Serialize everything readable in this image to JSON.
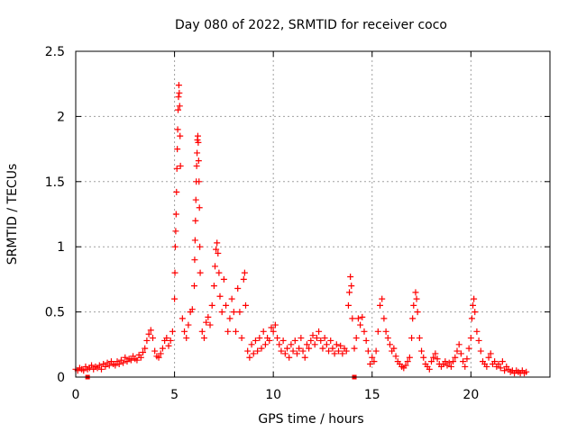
{
  "chart_data": {
    "type": "scatter",
    "title": "Day 080 of 2022, SRMTID for receiver coco",
    "xlabel": "GPS time / hours",
    "ylabel": "SRMTID / TECUs",
    "xlim": [
      0,
      24
    ],
    "ylim": [
      0,
      2.5
    ],
    "xticks": [
      0,
      5,
      10,
      15,
      20
    ],
    "xtick_labels": [
      "0",
      "5",
      "10",
      "15",
      "20"
    ],
    "yticks": [
      0,
      0.5,
      1,
      1.5,
      2,
      2.5
    ],
    "ytick_labels": [
      "0",
      "0.5",
      "1",
      "1.5",
      "2",
      "2.5"
    ],
    "grid": true,
    "marker": "+",
    "marker_color": "#ff0000",
    "series": [
      {
        "name": "SRMTID",
        "color": "#ff0000",
        "points": [
          [
            0.0,
            0.06
          ],
          [
            0.1,
            0.05
          ],
          [
            0.2,
            0.07
          ],
          [
            0.3,
            0.06
          ],
          [
            0.4,
            0.05
          ],
          [
            0.5,
            0.08
          ],
          [
            0.6,
            0.06
          ],
          [
            0.7,
            0.07
          ],
          [
            0.8,
            0.09
          ],
          [
            0.9,
            0.06
          ],
          [
            1.0,
            0.08
          ],
          [
            1.1,
            0.07
          ],
          [
            1.2,
            0.09
          ],
          [
            1.3,
            0.06
          ],
          [
            1.4,
            0.1
          ],
          [
            1.5,
            0.08
          ],
          [
            1.6,
            0.11
          ],
          [
            1.7,
            0.09
          ],
          [
            1.8,
            0.12
          ],
          [
            1.9,
            0.1
          ],
          [
            2.0,
            0.09
          ],
          [
            2.1,
            0.12
          ],
          [
            2.2,
            0.1
          ],
          [
            2.3,
            0.13
          ],
          [
            2.4,
            0.11
          ],
          [
            2.5,
            0.15
          ],
          [
            2.6,
            0.12
          ],
          [
            2.7,
            0.14
          ],
          [
            2.8,
            0.13
          ],
          [
            2.9,
            0.16
          ],
          [
            3.0,
            0.14
          ],
          [
            3.1,
            0.13
          ],
          [
            3.2,
            0.17
          ],
          [
            3.3,
            0.15
          ],
          [
            3.4,
            0.19
          ],
          [
            3.5,
            0.22
          ],
          [
            3.6,
            0.28
          ],
          [
            3.7,
            0.33
          ],
          [
            3.8,
            0.36
          ],
          [
            3.9,
            0.3
          ],
          [
            4.0,
            0.2
          ],
          [
            4.1,
            0.16
          ],
          [
            4.2,
            0.15
          ],
          [
            4.3,
            0.18
          ],
          [
            4.4,
            0.22
          ],
          [
            4.5,
            0.28
          ],
          [
            4.6,
            0.3
          ],
          [
            4.7,
            0.24
          ],
          [
            4.8,
            0.28
          ],
          [
            4.9,
            0.35
          ],
          [
            5.0,
            0.6
          ],
          [
            5.02,
            0.8
          ],
          [
            5.04,
            1.0
          ],
          [
            5.06,
            1.12
          ],
          [
            5.08,
            1.25
          ],
          [
            5.1,
            1.42
          ],
          [
            5.12,
            1.6
          ],
          [
            5.14,
            1.75
          ],
          [
            5.16,
            1.9
          ],
          [
            5.18,
            2.05
          ],
          [
            5.2,
            2.15
          ],
          [
            5.22,
            2.24
          ],
          [
            5.24,
            2.18
          ],
          [
            5.26,
            2.08
          ],
          [
            5.28,
            1.85
          ],
          [
            5.3,
            1.62
          ],
          [
            5.4,
            0.45
          ],
          [
            5.5,
            0.35
          ],
          [
            5.6,
            0.3
          ],
          [
            5.7,
            0.4
          ],
          [
            5.8,
            0.5
          ],
          [
            5.9,
            0.52
          ],
          [
            6.0,
            0.7
          ],
          [
            6.02,
            0.9
          ],
          [
            6.04,
            1.05
          ],
          [
            6.06,
            1.2
          ],
          [
            6.08,
            1.36
          ],
          [
            6.1,
            1.5
          ],
          [
            6.12,
            1.62
          ],
          [
            6.14,
            1.72
          ],
          [
            6.16,
            1.82
          ],
          [
            6.18,
            1.85
          ],
          [
            6.2,
            1.8
          ],
          [
            6.22,
            1.66
          ],
          [
            6.24,
            1.5
          ],
          [
            6.26,
            1.3
          ],
          [
            6.28,
            1.0
          ],
          [
            6.3,
            0.8
          ],
          [
            6.4,
            0.35
          ],
          [
            6.5,
            0.3
          ],
          [
            6.6,
            0.42
          ],
          [
            6.7,
            0.46
          ],
          [
            6.8,
            0.4
          ],
          [
            6.9,
            0.55
          ],
          [
            7.0,
            0.7
          ],
          [
            7.05,
            0.85
          ],
          [
            7.1,
            0.98
          ],
          [
            7.15,
            1.03
          ],
          [
            7.2,
            0.95
          ],
          [
            7.25,
            0.8
          ],
          [
            7.3,
            0.62
          ],
          [
            7.4,
            0.5
          ],
          [
            7.5,
            0.75
          ],
          [
            7.6,
            0.55
          ],
          [
            7.7,
            0.35
          ],
          [
            7.8,
            0.45
          ],
          [
            7.9,
            0.6
          ],
          [
            8.0,
            0.5
          ],
          [
            8.1,
            0.35
          ],
          [
            8.2,
            0.68
          ],
          [
            8.3,
            0.5
          ],
          [
            8.4,
            0.3
          ],
          [
            8.5,
            0.75
          ],
          [
            8.55,
            0.8
          ],
          [
            8.6,
            0.55
          ],
          [
            8.7,
            0.2
          ],
          [
            8.8,
            0.15
          ],
          [
            8.9,
            0.25
          ],
          [
            9.0,
            0.18
          ],
          [
            9.1,
            0.28
          ],
          [
            9.2,
            0.2
          ],
          [
            9.3,
            0.3
          ],
          [
            9.4,
            0.22
          ],
          [
            9.5,
            0.35
          ],
          [
            9.6,
            0.25
          ],
          [
            9.7,
            0.3
          ],
          [
            9.8,
            0.28
          ],
          [
            9.9,
            0.38
          ],
          [
            10.0,
            0.35
          ],
          [
            10.1,
            0.4
          ],
          [
            10.2,
            0.3
          ],
          [
            10.3,
            0.25
          ],
          [
            10.4,
            0.2
          ],
          [
            10.5,
            0.28
          ],
          [
            10.6,
            0.18
          ],
          [
            10.7,
            0.22
          ],
          [
            10.8,
            0.15
          ],
          [
            10.9,
            0.25
          ],
          [
            11.0,
            0.2
          ],
          [
            11.1,
            0.28
          ],
          [
            11.2,
            0.18
          ],
          [
            11.3,
            0.22
          ],
          [
            11.4,
            0.3
          ],
          [
            11.5,
            0.2
          ],
          [
            11.6,
            0.15
          ],
          [
            11.7,
            0.25
          ],
          [
            11.8,
            0.22
          ],
          [
            11.9,
            0.28
          ],
          [
            12.0,
            0.32
          ],
          [
            12.1,
            0.25
          ],
          [
            12.2,
            0.3
          ],
          [
            12.3,
            0.35
          ],
          [
            12.4,
            0.28
          ],
          [
            12.5,
            0.22
          ],
          [
            12.6,
            0.3
          ],
          [
            12.7,
            0.25
          ],
          [
            12.8,
            0.2
          ],
          [
            12.9,
            0.28
          ],
          [
            13.0,
            0.22
          ],
          [
            13.1,
            0.18
          ],
          [
            13.2,
            0.25
          ],
          [
            13.3,
            0.2
          ],
          [
            13.4,
            0.24
          ],
          [
            13.5,
            0.18
          ],
          [
            13.6,
            0.22
          ],
          [
            13.7,
            0.2
          ],
          [
            13.8,
            0.55
          ],
          [
            13.85,
            0.65
          ],
          [
            13.9,
            0.77
          ],
          [
            13.95,
            0.7
          ],
          [
            14.0,
            0.45
          ],
          [
            14.1,
            0.22
          ],
          [
            14.2,
            0.3
          ],
          [
            14.3,
            0.45
          ],
          [
            14.4,
            0.4
          ],
          [
            14.5,
            0.46
          ],
          [
            14.6,
            0.35
          ],
          [
            14.7,
            0.28
          ],
          [
            14.8,
            0.2
          ],
          [
            14.9,
            0.1
          ],
          [
            15.0,
            0.15
          ],
          [
            15.1,
            0.12
          ],
          [
            15.2,
            0.2
          ],
          [
            15.3,
            0.35
          ],
          [
            15.4,
            0.55
          ],
          [
            15.5,
            0.6
          ],
          [
            15.6,
            0.45
          ],
          [
            15.7,
            0.35
          ],
          [
            15.8,
            0.3
          ],
          [
            15.9,
            0.25
          ],
          [
            16.0,
            0.2
          ],
          [
            16.1,
            0.22
          ],
          [
            16.2,
            0.16
          ],
          [
            16.3,
            0.12
          ],
          [
            16.4,
            0.1
          ],
          [
            16.5,
            0.08
          ],
          [
            16.6,
            0.07
          ],
          [
            16.7,
            0.09
          ],
          [
            16.8,
            0.12
          ],
          [
            16.9,
            0.15
          ],
          [
            17.0,
            0.3
          ],
          [
            17.05,
            0.45
          ],
          [
            17.1,
            0.55
          ],
          [
            17.2,
            0.65
          ],
          [
            17.25,
            0.6
          ],
          [
            17.3,
            0.5
          ],
          [
            17.4,
            0.3
          ],
          [
            17.5,
            0.2
          ],
          [
            17.6,
            0.15
          ],
          [
            17.7,
            0.1
          ],
          [
            17.8,
            0.08
          ],
          [
            17.9,
            0.06
          ],
          [
            18.0,
            0.12
          ],
          [
            18.1,
            0.15
          ],
          [
            18.2,
            0.18
          ],
          [
            18.3,
            0.14
          ],
          [
            18.4,
            0.1
          ],
          [
            18.5,
            0.08
          ],
          [
            18.6,
            0.1
          ],
          [
            18.7,
            0.12
          ],
          [
            18.8,
            0.09
          ],
          [
            18.9,
            0.11
          ],
          [
            19.0,
            0.08
          ],
          [
            19.1,
            0.12
          ],
          [
            19.2,
            0.15
          ],
          [
            19.3,
            0.2
          ],
          [
            19.4,
            0.25
          ],
          [
            19.5,
            0.18
          ],
          [
            19.6,
            0.12
          ],
          [
            19.7,
            0.08
          ],
          [
            19.8,
            0.14
          ],
          [
            19.9,
            0.22
          ],
          [
            20.0,
            0.3
          ],
          [
            20.05,
            0.45
          ],
          [
            20.1,
            0.55
          ],
          [
            20.15,
            0.6
          ],
          [
            20.2,
            0.5
          ],
          [
            20.3,
            0.35
          ],
          [
            20.4,
            0.28
          ],
          [
            20.5,
            0.2
          ],
          [
            20.6,
            0.12
          ],
          [
            20.7,
            0.1
          ],
          [
            20.8,
            0.08
          ],
          [
            20.9,
            0.15
          ],
          [
            21.0,
            0.18
          ],
          [
            21.1,
            0.1
          ],
          [
            21.2,
            0.12
          ],
          [
            21.3,
            0.08
          ],
          [
            21.4,
            0.1
          ],
          [
            21.5,
            0.07
          ],
          [
            21.6,
            0.12
          ],
          [
            21.7,
            0.05
          ],
          [
            21.8,
            0.08
          ],
          [
            21.9,
            0.06
          ],
          [
            22.0,
            0.04
          ],
          [
            22.1,
            0.05
          ],
          [
            22.2,
            0.03
          ],
          [
            22.3,
            0.05
          ],
          [
            22.4,
            0.04
          ],
          [
            22.5,
            0.03
          ],
          [
            22.6,
            0.05
          ],
          [
            22.7,
            0.03
          ],
          [
            22.8,
            0.04
          ],
          [
            0.6,
            0.0
          ],
          [
            14.1,
            0.0
          ]
        ]
      }
    ]
  }
}
